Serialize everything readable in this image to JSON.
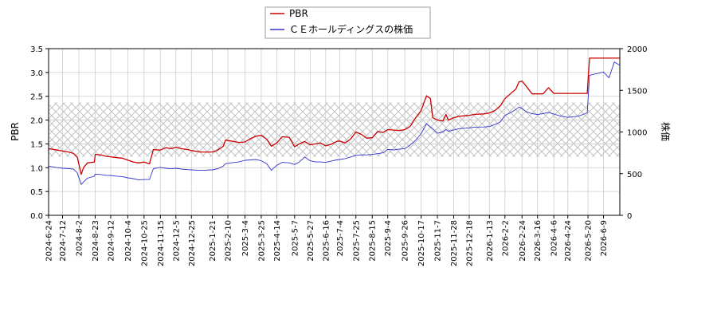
{
  "chart_data": {
    "type": "line",
    "left_axis": {
      "label": "PBR",
      "ylim": [
        0,
        3.5
      ],
      "ticks": [
        "0.0",
        "0.5",
        "1.0",
        "1.5",
        "2.0",
        "2.5",
        "3.0",
        "3.5"
      ]
    },
    "right_axis": {
      "label": "株価",
      "ylim": [
        0,
        2000
      ],
      "ticks": [
        "0",
        "500",
        "1000",
        "1500",
        "2000"
      ]
    },
    "x_range": [
      "2024-06-24",
      "2026-06-30"
    ],
    "x_ticks": [
      "2024-6-24",
      "2024-7-12",
      "2024-8-2",
      "2024-8-23",
      "2024-9-12",
      "2024-10-4",
      "2024-10-25",
      "2024-11-15",
      "2024-12-5",
      "2024-12-25",
      "2025-1-21",
      "2025-2-10",
      "2025-3-4",
      "2025-3-25",
      "2025-4-14",
      "2025-5-7",
      "2025-5-27",
      "2025-6-16",
      "2025-7-4",
      "2025-7-25",
      "2025-8-15",
      "2025-9-4",
      "2025-9-26",
      "2025-10-17",
      "2025-11-7",
      "2025-11-28",
      "2025-12-18",
      "2026-1-13",
      "2026-2-2",
      "2026-2-24",
      "2026-3-16",
      "2026-4-6",
      "2026-4-24",
      "2026-5-20",
      "2026-6-9"
    ],
    "band": {
      "axis": "left",
      "from": 1.23,
      "to": 2.37,
      "pattern": "crosshatch"
    },
    "grid": true,
    "legend_position": "top-center",
    "series": [
      {
        "name": "PBR",
        "axis": "left",
        "color": "#cc0000",
        "points": [
          [
            "2024-06-24",
            1.4
          ],
          [
            "2024-07-05",
            1.37
          ],
          [
            "2024-07-12",
            1.35
          ],
          [
            "2024-07-20",
            1.33
          ],
          [
            "2024-07-26",
            1.3
          ],
          [
            "2024-07-31",
            1.22
          ],
          [
            "2024-08-05",
            0.86
          ],
          [
            "2024-08-08",
            1.0
          ],
          [
            "2024-08-13",
            1.1
          ],
          [
            "2024-08-22",
            1.12
          ],
          [
            "2024-08-23",
            1.28
          ],
          [
            "2024-08-30",
            1.27
          ],
          [
            "2024-09-06",
            1.24
          ],
          [
            "2024-09-12",
            1.23
          ],
          [
            "2024-09-20",
            1.21
          ],
          [
            "2024-09-27",
            1.2
          ],
          [
            "2024-10-04",
            1.16
          ],
          [
            "2024-10-11",
            1.12
          ],
          [
            "2024-10-18",
            1.1
          ],
          [
            "2024-10-25",
            1.12
          ],
          [
            "2024-11-01",
            1.08
          ],
          [
            "2024-11-06",
            1.38
          ],
          [
            "2024-11-15",
            1.37
          ],
          [
            "2024-11-22",
            1.42
          ],
          [
            "2024-11-29",
            1.4
          ],
          [
            "2024-12-05",
            1.43
          ],
          [
            "2024-12-12",
            1.4
          ],
          [
            "2024-12-20",
            1.38
          ],
          [
            "2024-12-25",
            1.36
          ],
          [
            "2025-01-06",
            1.33
          ],
          [
            "2025-01-21",
            1.33
          ],
          [
            "2025-01-28",
            1.37
          ],
          [
            "2025-02-04",
            1.45
          ],
          [
            "2025-02-07",
            1.58
          ],
          [
            "2025-02-14",
            1.56
          ],
          [
            "2025-02-24",
            1.53
          ],
          [
            "2025-03-04",
            1.54
          ],
          [
            "2025-03-11",
            1.61
          ],
          [
            "2025-03-18",
            1.66
          ],
          [
            "2025-03-25",
            1.68
          ],
          [
            "2025-04-01",
            1.6
          ],
          [
            "2025-04-07",
            1.45
          ],
          [
            "2025-04-14",
            1.52
          ],
          [
            "2025-04-21",
            1.65
          ],
          [
            "2025-04-30",
            1.64
          ],
          [
            "2025-05-07",
            1.44
          ],
          [
            "2025-05-13",
            1.5
          ],
          [
            "2025-05-20",
            1.55
          ],
          [
            "2025-05-27",
            1.48
          ],
          [
            "2025-06-03",
            1.5
          ],
          [
            "2025-06-09",
            1.52
          ],
          [
            "2025-06-16",
            1.46
          ],
          [
            "2025-06-23",
            1.49
          ],
          [
            "2025-06-30",
            1.55
          ],
          [
            "2025-07-04",
            1.56
          ],
          [
            "2025-07-11",
            1.52
          ],
          [
            "2025-07-18",
            1.6
          ],
          [
            "2025-07-25",
            1.75
          ],
          [
            "2025-08-01",
            1.7
          ],
          [
            "2025-08-08",
            1.62
          ],
          [
            "2025-08-15",
            1.63
          ],
          [
            "2025-08-22",
            1.76
          ],
          [
            "2025-08-29",
            1.74
          ],
          [
            "2025-09-04",
            1.8
          ],
          [
            "2025-09-12",
            1.79
          ],
          [
            "2025-09-19",
            1.78
          ],
          [
            "2025-09-26",
            1.8
          ],
          [
            "2025-10-03",
            1.87
          ],
          [
            "2025-10-10",
            2.05
          ],
          [
            "2025-10-17",
            2.2
          ],
          [
            "2025-10-24",
            2.51
          ],
          [
            "2025-10-29",
            2.45
          ],
          [
            "2025-11-01",
            2.05
          ],
          [
            "2025-11-07",
            2.0
          ],
          [
            "2025-11-14",
            1.98
          ],
          [
            "2025-11-18",
            2.12
          ],
          [
            "2025-11-21",
            2.0
          ],
          [
            "2025-11-28",
            2.05
          ],
          [
            "2025-12-05",
            2.08
          ],
          [
            "2025-12-12",
            2.09
          ],
          [
            "2025-12-18",
            2.1
          ],
          [
            "2025-12-25",
            2.12
          ],
          [
            "2026-01-06",
            2.13
          ],
          [
            "2026-01-13",
            2.15
          ],
          [
            "2026-01-20",
            2.2
          ],
          [
            "2026-01-27",
            2.3
          ],
          [
            "2026-02-02",
            2.45
          ],
          [
            "2026-02-09",
            2.55
          ],
          [
            "2026-02-16",
            2.65
          ],
          [
            "2026-02-20",
            2.8
          ],
          [
            "2026-02-24",
            2.82
          ],
          [
            "2026-03-02",
            2.7
          ],
          [
            "2026-03-09",
            2.55
          ],
          [
            "2026-03-16",
            2.55
          ],
          [
            "2026-03-23",
            2.55
          ],
          [
            "2026-03-30",
            2.68
          ],
          [
            "2026-04-06",
            2.56
          ],
          [
            "2026-04-13",
            2.56
          ],
          [
            "2026-04-24",
            2.56
          ],
          [
            "2026-05-08",
            2.56
          ],
          [
            "2026-05-19",
            2.56
          ],
          [
            "2026-05-22",
            3.3
          ],
          [
            "2026-06-09",
            3.3
          ],
          [
            "2026-06-30",
            3.3
          ]
        ]
      },
      {
        "name": "ＣＥホールディングスの株価",
        "axis": "right",
        "color": "#3333cc",
        "points": [
          [
            "2024-06-24",
            590
          ],
          [
            "2024-07-05",
            572
          ],
          [
            "2024-07-12",
            565
          ],
          [
            "2024-07-20",
            560
          ],
          [
            "2024-07-26",
            555
          ],
          [
            "2024-07-31",
            510
          ],
          [
            "2024-08-05",
            370
          ],
          [
            "2024-08-08",
            400
          ],
          [
            "2024-08-13",
            445
          ],
          [
            "2024-08-22",
            470
          ],
          [
            "2024-08-23",
            495
          ],
          [
            "2024-08-30",
            490
          ],
          [
            "2024-09-06",
            480
          ],
          [
            "2024-09-12",
            478
          ],
          [
            "2024-09-20",
            470
          ],
          [
            "2024-09-27",
            465
          ],
          [
            "2024-10-04",
            450
          ],
          [
            "2024-10-11",
            440
          ],
          [
            "2024-10-18",
            425
          ],
          [
            "2024-10-25",
            430
          ],
          [
            "2024-11-01",
            430
          ],
          [
            "2024-11-06",
            560
          ],
          [
            "2024-11-15",
            575
          ],
          [
            "2024-11-22",
            565
          ],
          [
            "2024-11-29",
            558
          ],
          [
            "2024-12-05",
            565
          ],
          [
            "2024-12-12",
            555
          ],
          [
            "2024-12-20",
            548
          ],
          [
            "2024-12-25",
            545
          ],
          [
            "2025-01-06",
            540
          ],
          [
            "2025-01-21",
            545
          ],
          [
            "2025-01-28",
            560
          ],
          [
            "2025-02-04",
            590
          ],
          [
            "2025-02-07",
            620
          ],
          [
            "2025-02-14",
            630
          ],
          [
            "2025-02-24",
            640
          ],
          [
            "2025-03-04",
            660
          ],
          [
            "2025-03-11",
            665
          ],
          [
            "2025-03-18",
            670
          ],
          [
            "2025-03-25",
            655
          ],
          [
            "2025-04-01",
            620
          ],
          [
            "2025-04-07",
            540
          ],
          [
            "2025-04-14",
            600
          ],
          [
            "2025-04-21",
            635
          ],
          [
            "2025-04-30",
            630
          ],
          [
            "2025-05-07",
            610
          ],
          [
            "2025-05-13",
            640
          ],
          [
            "2025-05-20",
            700
          ],
          [
            "2025-05-27",
            655
          ],
          [
            "2025-06-03",
            640
          ],
          [
            "2025-06-09",
            640
          ],
          [
            "2025-06-16",
            635
          ],
          [
            "2025-06-23",
            650
          ],
          [
            "2025-06-30",
            665
          ],
          [
            "2025-07-04",
            670
          ],
          [
            "2025-07-11",
            680
          ],
          [
            "2025-07-18",
            700
          ],
          [
            "2025-07-25",
            720
          ],
          [
            "2025-08-01",
            725
          ],
          [
            "2025-08-08",
            725
          ],
          [
            "2025-08-15",
            730
          ],
          [
            "2025-08-22",
            740
          ],
          [
            "2025-08-29",
            750
          ],
          [
            "2025-09-04",
            790
          ],
          [
            "2025-09-12",
            785
          ],
          [
            "2025-09-19",
            795
          ],
          [
            "2025-09-26",
            800
          ],
          [
            "2025-10-03",
            845
          ],
          [
            "2025-10-10",
            900
          ],
          [
            "2025-10-17",
            980
          ],
          [
            "2025-10-24",
            1100
          ],
          [
            "2025-10-29",
            1060
          ],
          [
            "2025-11-01",
            1040
          ],
          [
            "2025-11-07",
            985
          ],
          [
            "2025-11-14",
            1000
          ],
          [
            "2025-11-18",
            1030
          ],
          [
            "2025-11-21",
            1010
          ],
          [
            "2025-11-28",
            1025
          ],
          [
            "2025-12-05",
            1040
          ],
          [
            "2025-12-12",
            1045
          ],
          [
            "2025-12-18",
            1050
          ],
          [
            "2025-12-25",
            1058
          ],
          [
            "2026-01-06",
            1060
          ],
          [
            "2026-01-13",
            1065
          ],
          [
            "2026-01-20",
            1090
          ],
          [
            "2026-01-27",
            1120
          ],
          [
            "2026-02-02",
            1200
          ],
          [
            "2026-02-09",
            1230
          ],
          [
            "2026-02-16",
            1270
          ],
          [
            "2026-02-20",
            1300
          ],
          [
            "2026-02-24",
            1280
          ],
          [
            "2026-03-02",
            1240
          ],
          [
            "2026-03-09",
            1220
          ],
          [
            "2026-03-16",
            1210
          ],
          [
            "2026-03-23",
            1220
          ],
          [
            "2026-03-30",
            1235
          ],
          [
            "2026-04-06",
            1215
          ],
          [
            "2026-04-13",
            1195
          ],
          [
            "2026-04-24",
            1175
          ],
          [
            "2026-05-08",
            1190
          ],
          [
            "2026-05-19",
            1230
          ],
          [
            "2026-05-22",
            1680
          ],
          [
            "2026-06-09",
            1720
          ],
          [
            "2026-06-16",
            1650
          ],
          [
            "2026-06-23",
            1840
          ],
          [
            "2026-06-30",
            1800
          ]
        ]
      }
    ]
  }
}
